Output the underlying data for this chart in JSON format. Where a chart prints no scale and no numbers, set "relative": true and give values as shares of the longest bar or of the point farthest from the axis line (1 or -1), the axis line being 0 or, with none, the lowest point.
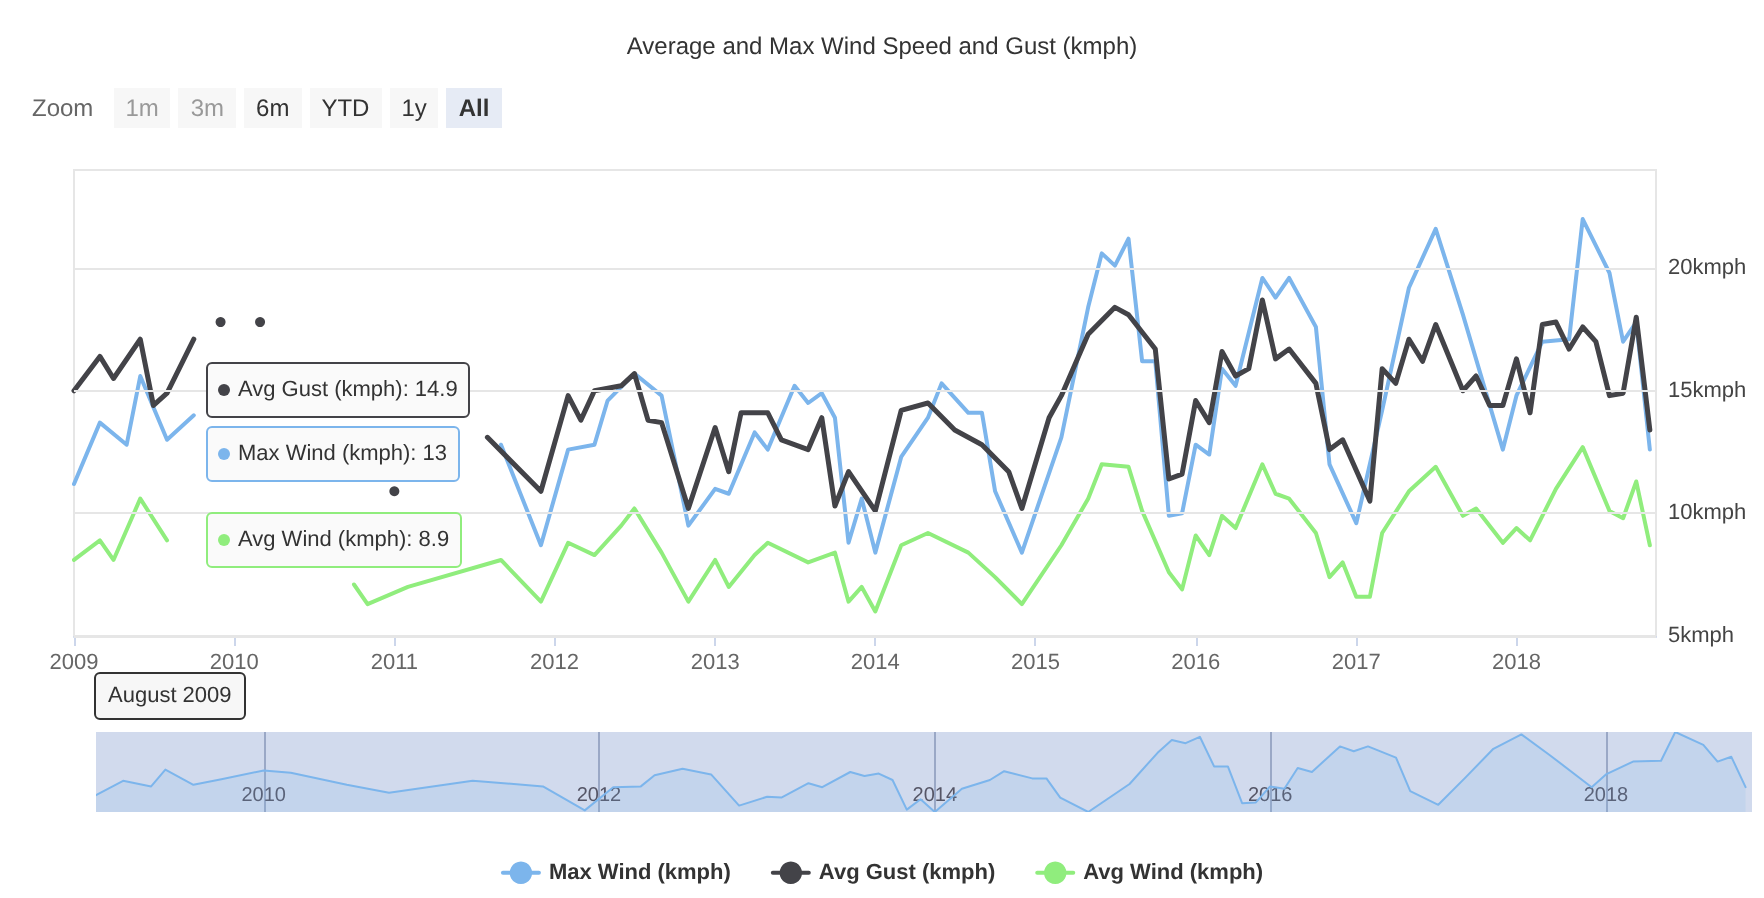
{
  "chart_data": [
    {
      "type": "line",
      "title": "Average and Max Wind Speed and Gust (kmph)",
      "series": [
        {
          "name": "Max Wind (kmph)",
          "color": "#7cb5ec",
          "x": [
            "2009-01",
            "2009-03",
            "2009-05",
            "2009-06",
            "2009-08",
            "2009-10",
            "2010-01",
            "2010-03",
            "2010-07",
            "2010-10",
            "2011-04",
            "2011-09",
            "2011-12",
            "2012-02",
            "2012-04",
            "2012-05",
            "2012-07",
            "2012-09",
            "2012-11",
            "2013-01",
            "2013-02",
            "2013-04",
            "2013-05",
            "2013-07",
            "2013-08",
            "2013-09",
            "2013-10",
            "2013-11",
            "2013-12",
            "2014-01",
            "2014-03",
            "2014-05",
            "2014-06",
            "2014-08",
            "2014-09",
            "2014-10",
            "2014-12",
            "2015-03",
            "2015-05",
            "2015-06",
            "2015-07",
            "2015-08",
            "2015-09",
            "2015-10",
            "2015-11",
            "2015-12",
            "2016-01",
            "2016-02",
            "2016-03",
            "2016-04",
            "2016-06",
            "2016-07",
            "2016-08",
            "2016-10",
            "2016-11",
            "2017-01",
            "2017-03",
            "2017-05",
            "2017-07",
            "2017-09",
            "2017-12",
            "2018-01",
            "2018-03",
            "2018-05",
            "2018-06",
            "2018-08",
            "2018-09",
            "2018-10",
            "2018-11"
          ],
          "values": [
            11.2,
            13.7,
            12.8,
            15.6,
            13.0,
            14.0,
            null,
            null,
            null,
            null,
            null,
            12.8,
            8.7,
            12.6,
            12.8,
            14.6,
            15.7,
            14.8,
            9.5,
            11.0,
            10.8,
            13.3,
            12.6,
            15.2,
            14.5,
            14.9,
            13.9,
            8.8,
            10.6,
            8.4,
            12.3,
            13.9,
            15.3,
            14.1,
            14.1,
            10.9,
            8.4,
            13.1,
            18.4,
            20.6,
            20.1,
            21.2,
            16.2,
            16.2,
            9.9,
            10.0,
            12.8,
            12.4,
            15.9,
            15.2,
            19.6,
            18.8,
            19.6,
            17.6,
            12.0,
            9.6,
            14.2,
            19.2,
            21.6,
            18.1,
            12.6,
            14.8,
            17.0,
            17.1,
            22.0,
            19.8,
            17.0,
            17.8,
            12.6
          ]
        },
        {
          "name": "Avg Gust (kmph)",
          "color": "#434348",
          "x": [
            "2009-01",
            "2009-03",
            "2009-04",
            "2009-06",
            "2009-07",
            "2009-08",
            "2009-10",
            "2009-11",
            "2009-12",
            "2010-02",
            "2010-03",
            "2010-06",
            "2010-09",
            "2010-11",
            "2011-01",
            "2011-04",
            "2011-08",
            "2011-12",
            "2012-02",
            "2012-03",
            "2012-04",
            "2012-06",
            "2012-07",
            "2012-08",
            "2012-09",
            "2012-11",
            "2013-01",
            "2013-02",
            "2013-03",
            "2013-05",
            "2013-06",
            "2013-08",
            "2013-09",
            "2013-10",
            "2013-11",
            "2014-01",
            "2014-03",
            "2014-05",
            "2014-07",
            "2014-09",
            "2014-11",
            "2014-12",
            "2015-02",
            "2015-03",
            "2015-05",
            "2015-07",
            "2015-08",
            "2015-10",
            "2015-11",
            "2015-12",
            "2016-01",
            "2016-02",
            "2016-03",
            "2016-04",
            "2016-05",
            "2016-06",
            "2016-07",
            "2016-08",
            "2016-10",
            "2016-11",
            "2016-12",
            "2017-02",
            "2017-03",
            "2017-04",
            "2017-05",
            "2017-06",
            "2017-07",
            "2017-09",
            "2017-10",
            "2017-11",
            "2017-12",
            "2018-01",
            "2018-02",
            "2018-03",
            "2018-04",
            "2018-05",
            "2018-06",
            "2018-07",
            "2018-08",
            "2018-09",
            "2018-10",
            "2018-11"
          ],
          "values": [
            15.0,
            16.4,
            15.5,
            17.1,
            14.4,
            14.9,
            17.1,
            null,
            17.8,
            null,
            17.8,
            null,
            null,
            null,
            10.9,
            null,
            13.1,
            10.9,
            14.8,
            13.8,
            15.0,
            15.2,
            15.7,
            13.8,
            13.7,
            10.2,
            13.5,
            11.7,
            14.1,
            14.1,
            13.0,
            12.6,
            13.9,
            10.3,
            11.7,
            10.1,
            14.2,
            14.5,
            13.4,
            12.8,
            11.7,
            10.2,
            13.9,
            14.8,
            17.3,
            18.4,
            18.1,
            16.7,
            11.4,
            11.6,
            14.6,
            13.7,
            16.6,
            15.6,
            15.9,
            18.7,
            16.3,
            16.7,
            15.3,
            12.6,
            13.0,
            10.5,
            15.9,
            15.3,
            17.1,
            16.2,
            17.7,
            15.0,
            15.6,
            14.4,
            14.4,
            16.3,
            14.1,
            17.7,
            17.8,
            16.7,
            17.6,
            17.0,
            14.8,
            14.9,
            18.0,
            13.4
          ]
        },
        {
          "name": "Avg Wind (kmph)",
          "color": "#90ed7d",
          "x": [
            "2009-01",
            "2009-03",
            "2009-04",
            "2009-06",
            "2009-08",
            "2009-11",
            "2010-02",
            "2010-06",
            "2010-10",
            "2010-11",
            "2011-02",
            "2011-09",
            "2011-12",
            "2012-02",
            "2012-04",
            "2012-06",
            "2012-07",
            "2012-09",
            "2012-11",
            "2013-01",
            "2013-02",
            "2013-04",
            "2013-05",
            "2013-08",
            "2013-10",
            "2013-11",
            "2013-12",
            "2014-01",
            "2014-03",
            "2014-05",
            "2014-08",
            "2014-10",
            "2014-12",
            "2015-03",
            "2015-05",
            "2015-06",
            "2015-08",
            "2015-09",
            "2015-11",
            "2015-12",
            "2016-01",
            "2016-02",
            "2016-03",
            "2016-04",
            "2016-06",
            "2016-07",
            "2016-08",
            "2016-10",
            "2016-11",
            "2016-12",
            "2017-01",
            "2017-02",
            "2017-03",
            "2017-05",
            "2017-07",
            "2017-09",
            "2017-10",
            "2017-12",
            "2018-01",
            "2018-02",
            "2018-04",
            "2018-06",
            "2018-08",
            "2018-09",
            "2018-10",
            "2018-11"
          ],
          "values": [
            8.1,
            8.9,
            8.1,
            10.6,
            8.9,
            null,
            null,
            null,
            7.1,
            6.3,
            7.0,
            8.1,
            6.4,
            8.8,
            8.3,
            9.5,
            10.2,
            8.4,
            6.4,
            8.1,
            7.0,
            8.3,
            8.8,
            8.0,
            8.4,
            6.4,
            7.0,
            6.0,
            8.7,
            9.2,
            8.4,
            7.4,
            6.3,
            8.7,
            10.6,
            12.0,
            11.9,
            10.1,
            7.6,
            6.9,
            9.1,
            8.3,
            9.9,
            9.4,
            12.0,
            10.8,
            10.6,
            9.2,
            7.4,
            8.0,
            6.6,
            6.6,
            9.2,
            10.9,
            11.9,
            9.9,
            10.2,
            8.8,
            9.4,
            8.9,
            11.0,
            12.7,
            10.1,
            9.8,
            11.3,
            8.7
          ]
        }
      ],
      "xlim": [
        "2009-01-01",
        "2018-11-15"
      ],
      "xticks": [
        "2009",
        "2010",
        "2011",
        "2012",
        "2013",
        "2014",
        "2015",
        "2016",
        "2017",
        "2018"
      ],
      "ylim": [
        5,
        24
      ],
      "yticks": [
        {
          "value": 5,
          "label": "5kmph"
        },
        {
          "value": 10,
          "label": "10kmph"
        },
        {
          "value": 15,
          "label": "15kmph"
        },
        {
          "value": 20,
          "label": "20kmph"
        }
      ],
      "grid": "y",
      "legend": "bottom",
      "marker": "none",
      "annotations": [
        "Zoom",
        "1m",
        "3m",
        "6m",
        "YTD",
        "1y",
        "All",
        "August 2009",
        "Avg Gust (kmph): 14.9",
        "Max Wind (kmph): 13",
        "Avg Wind (kmph): 8.9"
      ]
    },
    {
      "type": "area",
      "relative": true,
      "color": "#7cb5ec",
      "x": [
        "2009-01",
        "2009-03",
        "2009-05",
        "2009-06",
        "2009-08",
        "2009-10",
        "2010-01",
        "2010-03",
        "2010-07",
        "2010-10",
        "2011-04",
        "2011-09",
        "2011-12",
        "2012-02",
        "2012-04",
        "2012-05",
        "2012-07",
        "2012-09",
        "2012-11",
        "2013-01",
        "2013-02",
        "2013-04",
        "2013-05",
        "2013-07",
        "2013-08",
        "2013-09",
        "2013-10",
        "2013-11",
        "2013-12",
        "2014-01",
        "2014-03",
        "2014-05",
        "2014-06",
        "2014-08",
        "2014-09",
        "2014-10",
        "2014-12",
        "2015-03",
        "2015-05",
        "2015-06",
        "2015-07",
        "2015-08",
        "2015-09",
        "2015-10",
        "2015-11",
        "2015-12",
        "2016-01",
        "2016-02",
        "2016-03",
        "2016-04",
        "2016-06",
        "2016-07",
        "2016-08",
        "2016-10",
        "2016-11",
        "2017-01",
        "2017-03",
        "2017-05",
        "2017-07",
        "2017-09",
        "2017-12",
        "2018-01",
        "2018-03",
        "2018-05",
        "2018-06",
        "2018-08",
        "2018-09",
        "2018-10",
        "2018-11"
      ],
      "values": [
        0.21,
        0.39,
        0.32,
        0.53,
        0.34,
        0.41,
        0.52,
        0.49,
        0.34,
        0.24,
        0.39,
        0.32,
        0.02,
        0.31,
        0.32,
        0.46,
        0.54,
        0.47,
        0.08,
        0.19,
        0.18,
        0.36,
        0.31,
        0.5,
        0.45,
        0.48,
        0.4,
        0.03,
        0.16,
        0,
        0.29,
        0.4,
        0.51,
        0.42,
        0.42,
        0.18,
        0,
        0.35,
        0.74,
        0.9,
        0.86,
        0.94,
        0.57,
        0.57,
        0.11,
        0.12,
        0.32,
        0.29,
        0.55,
        0.5,
        0.82,
        0.76,
        0.82,
        0.68,
        0.26,
        0.09,
        0.43,
        0.79,
        0.97,
        0.71,
        0.31,
        0.47,
        0.63,
        0.64,
        1,
        0.84,
        0.63,
        0.69,
        0.31
      ],
      "xlim": [
        "2009-01-01",
        "2018-11-15"
      ],
      "xticks": [
        "2010",
        "2012",
        "2014",
        "2016",
        "2018"
      ],
      "grid": "x"
    }
  ]
}
